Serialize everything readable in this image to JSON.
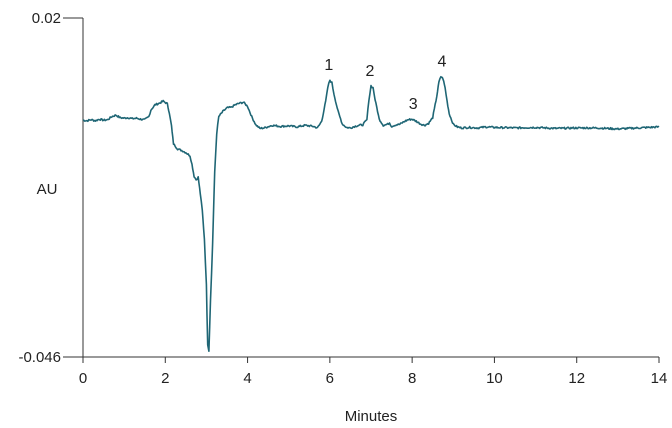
{
  "chart_data": {
    "type": "line",
    "title": "",
    "xlabel": "Minutes",
    "ylabel": "AU",
    "xlim": [
      0,
      14
    ],
    "ylim": [
      -0.046,
      0.02
    ],
    "x_ticks": [
      0,
      2,
      4,
      6,
      8,
      10,
      12,
      14
    ],
    "y_ticks": [
      "0.02",
      "-0.046"
    ],
    "grid": false,
    "line_color": "#1f6675",
    "series": [
      {
        "x": [
          0,
          0.1,
          0.2,
          0.3,
          0.4,
          0.5,
          0.6,
          0.7,
          0.8,
          0.9,
          1.0,
          1.1,
          1.2,
          1.3,
          1.4,
          1.5,
          1.6,
          1.65,
          1.75,
          1.85,
          1.95,
          2.05,
          2.1,
          2.15,
          2.2,
          2.3,
          2.4,
          2.5,
          2.6,
          2.65,
          2.7,
          2.75,
          2.8,
          2.85,
          2.9,
          2.95,
          3.0,
          3.03,
          3.06,
          3.1,
          3.15,
          3.2,
          3.25,
          3.3,
          3.4,
          3.5,
          3.6,
          3.7,
          3.8,
          3.9,
          4.0,
          4.1,
          4.2,
          4.3,
          4.4,
          4.6,
          4.8,
          5.0,
          5.2,
          5.4,
          5.6,
          5.7,
          5.8,
          5.9,
          5.95,
          6.0,
          6.05,
          6.1,
          6.2,
          6.3,
          6.4,
          6.5,
          6.6,
          6.7,
          6.8,
          6.9,
          6.95,
          7.0,
          7.05,
          7.1,
          7.2,
          7.3,
          7.4,
          7.45,
          7.5,
          7.6,
          7.7,
          7.8,
          7.9,
          8.0,
          8.1,
          8.2,
          8.3,
          8.4,
          8.5,
          8.6,
          8.65,
          8.7,
          8.75,
          8.8,
          8.85,
          8.9,
          9.0,
          9.1,
          9.2,
          9.4,
          9.6,
          9.8,
          10.0,
          10.5,
          11.0,
          11.5,
          12.0,
          12.5,
          13.0,
          13.5,
          14.0
        ],
        "y": [
          0.0001,
          0.0,
          0.0002,
          0.0,
          0.0003,
          0.0001,
          0.0002,
          0.0008,
          0.0011,
          0.0006,
          0.0005,
          0.0006,
          0.0004,
          0.0005,
          0.0003,
          0.0002,
          0.0008,
          0.0021,
          0.0031,
          0.0034,
          0.0038,
          0.0033,
          0.0015,
          -0.001,
          -0.0045,
          -0.0055,
          -0.0058,
          -0.0062,
          -0.0068,
          -0.0085,
          -0.0108,
          -0.0115,
          -0.011,
          -0.0142,
          -0.0175,
          -0.023,
          -0.032,
          -0.0435,
          -0.0448,
          -0.035,
          -0.024,
          -0.01,
          -0.0025,
          0.0008,
          0.0018,
          0.0025,
          0.0026,
          0.0031,
          0.0034,
          0.0036,
          0.0028,
          0.0008,
          -0.0008,
          -0.0015,
          -0.0014,
          -0.0009,
          -0.0011,
          -0.001,
          -0.0012,
          -0.0009,
          -0.0011,
          -0.0014,
          -0.0001,
          0.0038,
          0.0065,
          0.0079,
          0.0074,
          0.0052,
          0.0018,
          -0.0006,
          -0.0013,
          -0.0014,
          -0.0011,
          -0.0009,
          -0.0008,
          0.0002,
          0.0041,
          0.0068,
          0.0064,
          0.0041,
          0.0003,
          -0.0009,
          -0.0007,
          -0.0004,
          -0.0011,
          -0.0008,
          -0.0007,
          -0.0002,
          0.0002,
          0.0003,
          -0.0001,
          -0.0006,
          -0.0009,
          -0.0005,
          0.0006,
          0.0048,
          0.0075,
          0.0086,
          0.0082,
          0.0064,
          0.0038,
          0.0014,
          -0.0007,
          -0.0012,
          -0.0014,
          -0.0013,
          -0.0014,
          -0.0012,
          -0.0013,
          -0.0014,
          -0.0013,
          -0.0015,
          -0.0014,
          -0.0014,
          -0.0016,
          -0.0014,
          -0.0012
        ]
      }
    ],
    "annotations": [
      {
        "label": "1",
        "x": 6.0,
        "y": 0.0079
      },
      {
        "label": "2",
        "x": 7.0,
        "y": 0.0068
      },
      {
        "label": "3",
        "x": 8.05,
        "y": 0.0003
      },
      {
        "label": "4",
        "x": 8.75,
        "y": 0.0086
      }
    ]
  }
}
